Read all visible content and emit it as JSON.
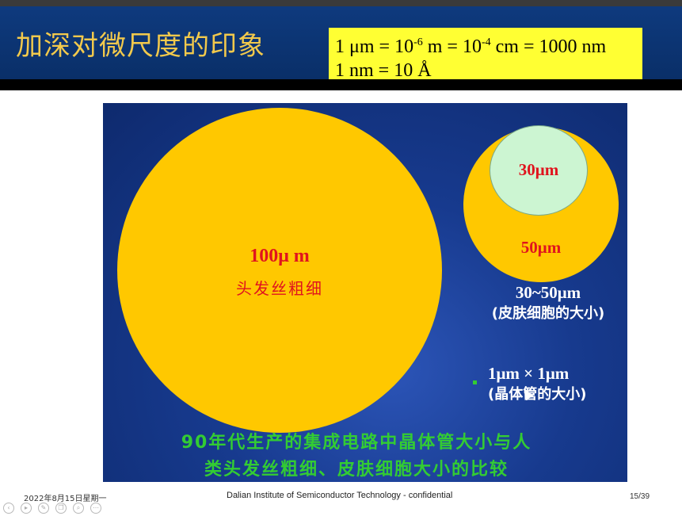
{
  "slide": {
    "title": "加深对微尺度的印象",
    "formula": {
      "line1": {
        "a": "1 μm = 10",
        "exp1": "-6",
        "b": " m = 10",
        "exp2": "-4",
        "c": " cm = 1000 nm"
      },
      "line2": "1 nm = 10 Å"
    },
    "hair": {
      "size": "100μ m",
      "label": "头发丝粗细"
    },
    "cell": {
      "outer_size": "50μm",
      "inner_size": "30μm",
      "range": "30~50μm",
      "desc": "(皮肤细胞的大小)"
    },
    "transistor": {
      "size": "1μm × 1μm",
      "desc": "(晶体管的大小)"
    },
    "caption": {
      "line1": "90年代生产的集成电路中晶体管大小与人",
      "line2": "类头发丝粗细、皮肤细胞大小的比较"
    },
    "colors": {
      "circle": "#ffc800",
      "inner_circle": "#ccf5d2",
      "size_text": "#e0141e",
      "caption_text": "#33cc33",
      "panel_bg": "#173a8e"
    }
  },
  "footer": {
    "date": "2022年8月15日星期一",
    "organization": "Dalian Institute of Semiconductor Technology - confidential",
    "page": "15/39"
  },
  "controls": [
    "prev-icon",
    "play-icon",
    "pen-icon",
    "copy-icon",
    "zoom-icon",
    "more-icon"
  ]
}
